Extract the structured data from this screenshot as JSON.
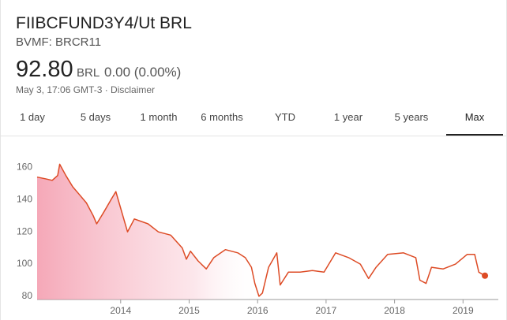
{
  "header": {
    "title": "FIIBCFUND3Y4/Ut BRL",
    "exchange": "BVMF: BRCR11",
    "price": "92.80",
    "currency": "BRL",
    "change": "0.00 (0.00%)",
    "timestamp": "May 3, 17:06 GMT-3 · Disclaimer"
  },
  "tabs": [
    "1 day",
    "5 days",
    "1 month",
    "6 months",
    "YTD",
    "1 year",
    "5 years",
    "Max"
  ],
  "chart_data": {
    "type": "line",
    "x": [
      2012.78,
      2012.9,
      2013.0,
      2013.08,
      2013.11,
      2013.2,
      2013.3,
      2013.4,
      2013.5,
      2013.6,
      2013.65,
      2013.75,
      2013.86,
      2013.93,
      2014.1,
      2014.2,
      2014.4,
      2014.55,
      2014.73,
      2014.9,
      2014.96,
      2015.02,
      2015.13,
      2015.25,
      2015.36,
      2015.53,
      2015.71,
      2015.82,
      2015.91,
      2015.96,
      2016.02,
      2016.07,
      2016.16,
      2016.28,
      2016.33,
      2016.45,
      2016.62,
      2016.8,
      2016.97,
      2017.14,
      2017.33,
      2017.5,
      2017.62,
      2017.73,
      2017.9,
      2018.13,
      2018.31,
      2018.37,
      2018.46,
      2018.54,
      2018.71,
      2018.89,
      2019.06,
      2019.17,
      2019.23,
      2019.32
    ],
    "series": [
      {
        "name": "BRCR11",
        "color": "#dd4b25",
        "values": [
          154,
          153,
          152,
          155,
          162,
          155,
          148,
          143,
          138,
          130,
          125,
          132,
          140,
          145,
          120,
          128,
          125,
          120,
          118,
          110,
          103,
          108,
          102,
          97,
          104,
          109,
          107,
          104,
          98,
          88,
          80,
          82,
          98,
          107,
          87,
          95,
          95,
          96,
          95,
          107,
          104,
          100,
          91,
          98,
          106,
          107,
          104,
          90,
          88,
          98,
          97,
          100,
          106,
          106,
          95,
          92.8
        ]
      }
    ],
    "xlim": [
      2012.78,
      2019.4
    ],
    "ylim": [
      78,
      171
    ],
    "xticks": [
      2014,
      2015,
      2016,
      2017,
      2018,
      2019
    ],
    "yticks": [
      80,
      100,
      120,
      140,
      160
    ],
    "grid": false
  }
}
